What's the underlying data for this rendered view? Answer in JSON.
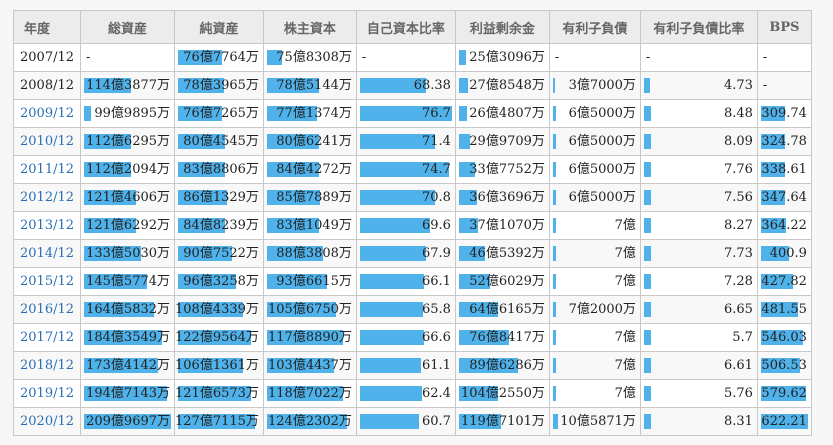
{
  "table": {
    "headers": [
      "年度",
      "総資産",
      "純資産",
      "株主資本",
      "自己資本比率",
      "利益剰余金",
      "有利子負債",
      "有利子負債比率",
      "BPS"
    ],
    "rows": [
      {
        "year": "2007/12",
        "year_link": false,
        "cells": [
          {
            "text": "-",
            "bar": 0,
            "left": true
          },
          {
            "text": "76億7764万",
            "bar": 0.56
          },
          {
            "text": "75億8308万",
            "bar": 0.18
          },
          {
            "text": "-",
            "bar": 0,
            "left": true
          },
          {
            "text": "25億3096万",
            "bar": 0.08
          },
          {
            "text": "-",
            "bar": 0,
            "left": true
          },
          {
            "text": "-",
            "bar": 0,
            "left": true
          },
          {
            "text": "-",
            "bar": 0,
            "left": true
          }
        ]
      },
      {
        "year": "2008/12",
        "year_link": false,
        "cells": [
          {
            "text": "114億3877万",
            "bar": 0.54
          },
          {
            "text": "78億3965万",
            "bar": 0.58
          },
          {
            "text": "78億5144万",
            "bar": 0.6
          },
          {
            "text": "68.38",
            "bar": 0.72
          },
          {
            "text": "27億8548万",
            "bar": 0.1
          },
          {
            "text": "3億7000万",
            "bar": 0.02
          },
          {
            "text": "4.73",
            "bar": 0.05
          },
          {
            "text": "-",
            "bar": 0,
            "left": true
          }
        ]
      },
      {
        "year": "2009/12",
        "year_link": true,
        "cells": [
          {
            "text": "99億9895万",
            "bar": 0.08
          },
          {
            "text": "76億7265万",
            "bar": 0.56
          },
          {
            "text": "77億1374万",
            "bar": 0.58
          },
          {
            "text": "76.7",
            "bar": 1.0
          },
          {
            "text": "26億4807万",
            "bar": 0.09
          },
          {
            "text": "6億5000万",
            "bar": 0.03
          },
          {
            "text": "8.48",
            "bar": 0.06
          },
          {
            "text": "309.74",
            "bar": 0.5
          }
        ]
      },
      {
        "year": "2010/12",
        "year_link": true,
        "cells": [
          {
            "text": "112億6295万",
            "bar": 0.54
          },
          {
            "text": "80億4545万",
            "bar": 0.6
          },
          {
            "text": "80億6241万",
            "bar": 0.6
          },
          {
            "text": "71.4",
            "bar": 0.82
          },
          {
            "text": "29億9709万",
            "bar": 0.13
          },
          {
            "text": "6億5000万",
            "bar": 0.03
          },
          {
            "text": "8.09",
            "bar": 0.06
          },
          {
            "text": "324.78",
            "bar": 0.5
          }
        ]
      },
      {
        "year": "2011/12",
        "year_link": true,
        "cells": [
          {
            "text": "112億2094万",
            "bar": 0.54
          },
          {
            "text": "83億8806万",
            "bar": 0.6
          },
          {
            "text": "84億4272万",
            "bar": 0.6
          },
          {
            "text": "74.7",
            "bar": 0.97
          },
          {
            "text": "33億7752万",
            "bar": 0.18
          },
          {
            "text": "6億5000万",
            "bar": 0.03
          },
          {
            "text": "7.76",
            "bar": 0.06
          },
          {
            "text": "338.61",
            "bar": 0.5
          }
        ]
      },
      {
        "year": "2012/12",
        "year_link": true,
        "cells": [
          {
            "text": "121億4606万",
            "bar": 0.6
          },
          {
            "text": "86億1329万",
            "bar": 0.62
          },
          {
            "text": "85億7889万",
            "bar": 0.62
          },
          {
            "text": "70.8",
            "bar": 0.81
          },
          {
            "text": "36億3696万",
            "bar": 0.21
          },
          {
            "text": "6億5000万",
            "bar": 0.03
          },
          {
            "text": "7.56",
            "bar": 0.06
          },
          {
            "text": "347.64",
            "bar": 0.5
          }
        ]
      },
      {
        "year": "2013/12",
        "year_link": true,
        "cells": [
          {
            "text": "121億6292万",
            "bar": 0.6
          },
          {
            "text": "84億8239万",
            "bar": 0.6
          },
          {
            "text": "83億1049万",
            "bar": 0.6
          },
          {
            "text": "69.6",
            "bar": 0.76
          },
          {
            "text": "37億1070万",
            "bar": 0.22
          },
          {
            "text": "7億",
            "bar": 0.04
          },
          {
            "text": "8.27",
            "bar": 0.06
          },
          {
            "text": "364.22",
            "bar": 0.53
          }
        ]
      },
      {
        "year": "2014/12",
        "year_link": true,
        "cells": [
          {
            "text": "133億5030万",
            "bar": 0.66
          },
          {
            "text": "90億7522万",
            "bar": 0.68
          },
          {
            "text": "88億3808万",
            "bar": 0.65
          },
          {
            "text": "67.9",
            "bar": 0.72
          },
          {
            "text": "46億5392万",
            "bar": 0.3
          },
          {
            "text": "7億",
            "bar": 0.04
          },
          {
            "text": "7.73",
            "bar": 0.06
          },
          {
            "text": "400.9",
            "bar": 0.6
          }
        ]
      },
      {
        "year": "2015/12",
        "year_link": true,
        "cells": [
          {
            "text": "145億5774万",
            "bar": 0.72
          },
          {
            "text": "96億3258万",
            "bar": 0.74
          },
          {
            "text": "93億6615万",
            "bar": 0.7
          },
          {
            "text": "66.1",
            "bar": 0.7
          },
          {
            "text": "52億6029万",
            "bar": 0.36
          },
          {
            "text": "7億",
            "bar": 0.04
          },
          {
            "text": "7.28",
            "bar": 0.06
          },
          {
            "text": "427.82",
            "bar": 0.68
          }
        ]
      },
      {
        "year": "2016/12",
        "year_link": true,
        "cells": [
          {
            "text": "164億5832万",
            "bar": 0.8
          },
          {
            "text": "108億4339万",
            "bar": 0.82
          },
          {
            "text": "105億6750万",
            "bar": 0.8
          },
          {
            "text": "65.8",
            "bar": 0.69
          },
          {
            "text": "64億6165万",
            "bar": 0.45
          },
          {
            "text": "7億2000万",
            "bar": 0.04
          },
          {
            "text": "6.65",
            "bar": 0.06
          },
          {
            "text": "481.55",
            "bar": 0.78
          }
        ]
      },
      {
        "year": "2017/12",
        "year_link": true,
        "cells": [
          {
            "text": "184億3549万",
            "bar": 0.9
          },
          {
            "text": "122億9564万",
            "bar": 0.93
          },
          {
            "text": "117億8890万",
            "bar": 0.88
          },
          {
            "text": "66.6",
            "bar": 0.7
          },
          {
            "text": "76億8417万",
            "bar": 0.57
          },
          {
            "text": "7億",
            "bar": 0.04
          },
          {
            "text": "5.7",
            "bar": 0.06
          },
          {
            "text": "546.03",
            "bar": 0.9
          }
        ]
      },
      {
        "year": "2018/12",
        "year_link": true,
        "cells": [
          {
            "text": "173億4142万",
            "bar": 0.85
          },
          {
            "text": "106億1361万",
            "bar": 0.82
          },
          {
            "text": "103億4437万",
            "bar": 0.78
          },
          {
            "text": "61.1",
            "bar": 0.66
          },
          {
            "text": "89億6286万",
            "bar": 0.68
          },
          {
            "text": "7億",
            "bar": 0.04
          },
          {
            "text": "6.61",
            "bar": 0.06
          },
          {
            "text": "506.53",
            "bar": 0.83
          }
        ]
      },
      {
        "year": "2019/12",
        "year_link": true,
        "cells": [
          {
            "text": "194億7143万",
            "bar": 0.95
          },
          {
            "text": "121億6573万",
            "bar": 0.93
          },
          {
            "text": "118億7022万",
            "bar": 0.88
          },
          {
            "text": "62.4",
            "bar": 0.67
          },
          {
            "text": "104億2550万",
            "bar": 0.45
          },
          {
            "text": "7億",
            "bar": 0.04
          },
          {
            "text": "5.76",
            "bar": 0.06
          },
          {
            "text": "579.62",
            "bar": 0.95
          }
        ]
      },
      {
        "year": "2020/12",
        "year_link": true,
        "cells": [
          {
            "text": "209億9697万",
            "bar": 1.0
          },
          {
            "text": "127億7115万",
            "bar": 0.97
          },
          {
            "text": "124億2302万",
            "bar": 0.93
          },
          {
            "text": "60.7",
            "bar": 0.64
          },
          {
            "text": "119億7101万",
            "bar": 0.48
          },
          {
            "text": "10億5871万",
            "bar": 0.06
          },
          {
            "text": "8.31",
            "bar": 0.06
          },
          {
            "text": "622.21",
            "bar": 1.0
          }
        ]
      }
    ]
  }
}
